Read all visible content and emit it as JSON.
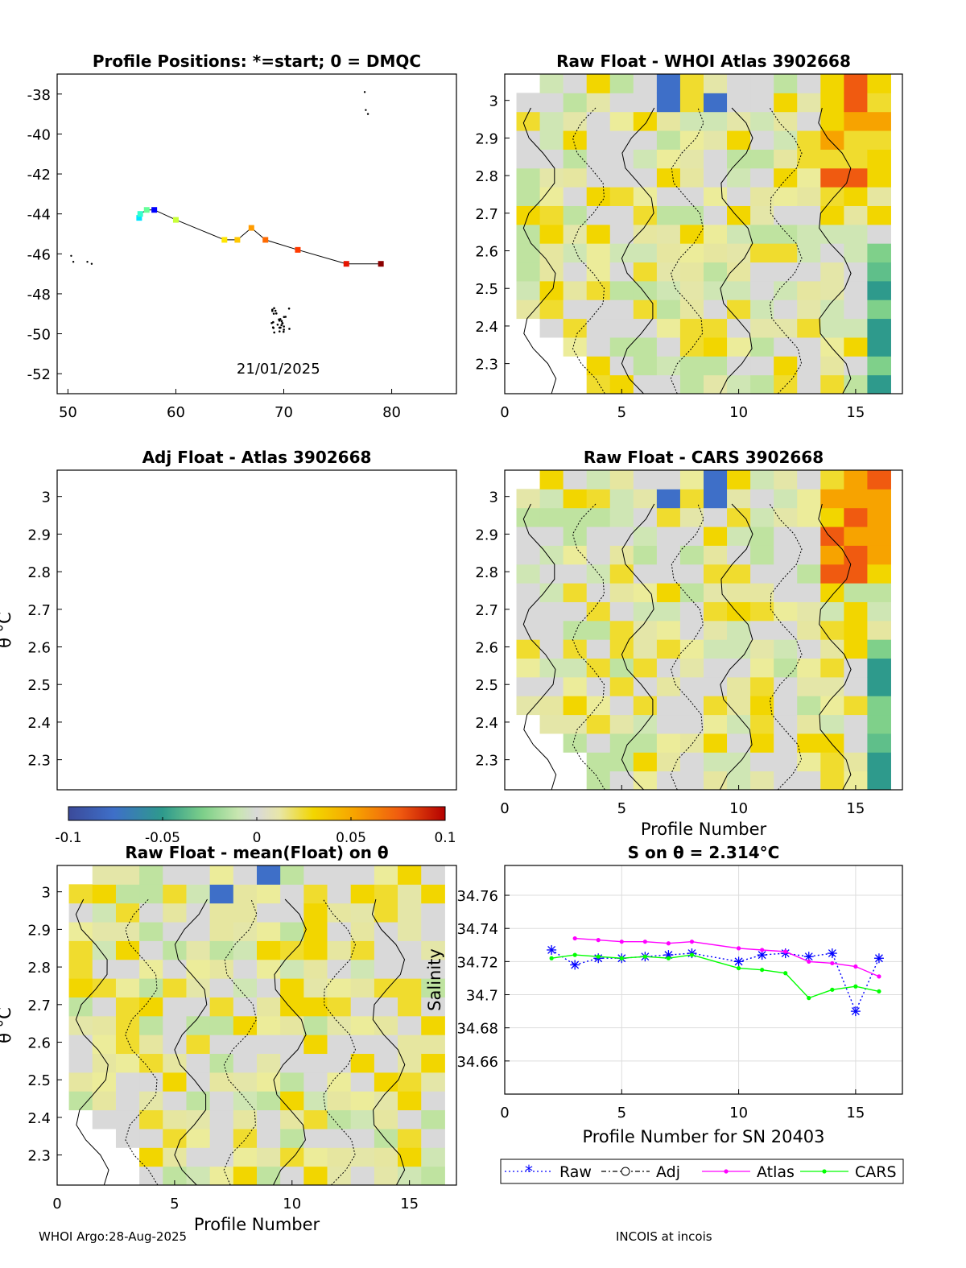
{
  "colors": {
    "float_track": "#000000",
    "raw": "#0000ff",
    "adj": "#000000",
    "atlas": "#ff00ff",
    "cars": "#00ff00",
    "grid": "#dddddd",
    "nodata": "#d9d9d9"
  },
  "chart_data": [
    {
      "type": "scatter",
      "name": "positions",
      "title": "Profile Positions: *=start; 0 = DMQC",
      "xlim": [
        49,
        86
      ],
      "ylim": [
        -53,
        -37
      ],
      "xticks": [
        50,
        60,
        70,
        80
      ],
      "yticks": [
        -38,
        -40,
        -42,
        -44,
        -46,
        -48,
        -50,
        -52
      ],
      "date_label": "21/01/2025",
      "track": [
        {
          "lon": 56.6,
          "lat": -44.2,
          "color": "#00e5ff"
        },
        {
          "lon": 56.7,
          "lat": -44.0,
          "color": "#33ffcc"
        },
        {
          "lon": 57.3,
          "lat": -43.8,
          "color": "#66ff99"
        },
        {
          "lon": 58.0,
          "lat": -43.8,
          "color": "#0000ff"
        },
        {
          "lon": 60.0,
          "lat": -44.3,
          "color": "#c8ff37"
        },
        {
          "lon": 64.5,
          "lat": -45.3,
          "color": "#ffe600"
        },
        {
          "lon": 65.7,
          "lat": -45.3,
          "color": "#ffc800"
        },
        {
          "lon": 67.0,
          "lat": -44.7,
          "color": "#ff9c00"
        },
        {
          "lon": 68.3,
          "lat": -45.3,
          "color": "#ff6a00"
        },
        {
          "lon": 71.3,
          "lat": -45.8,
          "color": "#ff3a00"
        },
        {
          "lon": 75.8,
          "lat": -46.5,
          "color": "#e61400"
        },
        {
          "lon": 79.0,
          "lat": -46.5,
          "color": "#8b0000"
        }
      ]
    },
    {
      "type": "heatmap",
      "name": "raw_whoi",
      "title": "Raw Float - WHOI Atlas  3902668",
      "xlabel": "",
      "ylabel": "",
      "xlim": [
        0,
        17
      ],
      "ylim": [
        2.22,
        3.07
      ],
      "xticks": [
        0,
        5,
        10,
        15
      ],
      "yticks": [
        3,
        2.9,
        2.8,
        2.7,
        2.6,
        2.5,
        2.4,
        2.3
      ]
    },
    {
      "type": "heatmap",
      "name": "adj_atlas",
      "title": "Adj Float - Atlas  3902668",
      "xlabel": "",
      "ylabel": "θ °C",
      "xlim": [
        0,
        17
      ],
      "ylim": [
        2.22,
        3.07
      ],
      "xticks": [],
      "yticks": [
        3,
        2.9,
        2.8,
        2.7,
        2.6,
        2.5,
        2.4,
        2.3
      ]
    },
    {
      "type": "heatmap",
      "name": "raw_cars",
      "title": "Raw Float - CARS  3902668",
      "xlabel": "Profile Number",
      "ylabel": "",
      "xlim": [
        0,
        17
      ],
      "ylim": [
        2.22,
        3.07
      ],
      "xticks": [
        0,
        5,
        10,
        15
      ],
      "yticks": [
        3,
        2.9,
        2.8,
        2.7,
        2.6,
        2.5,
        2.4,
        2.3
      ]
    },
    {
      "type": "heatmap",
      "name": "raw_mean",
      "title": "Raw Float - mean(Float) on θ",
      "xlabel": "Profile Number",
      "ylabel": "θ °C",
      "xlim": [
        0,
        17
      ],
      "ylim": [
        2.22,
        3.07
      ],
      "xticks": [
        0,
        5,
        10,
        15
      ],
      "yticks": [
        3,
        2.9,
        2.8,
        2.7,
        2.6,
        2.5,
        2.4,
        2.3
      ]
    },
    {
      "type": "line",
      "name": "salinity",
      "title": "S on θ = 2.314°C",
      "xlabel": "Profile Number for SN 20403",
      "ylabel": "Salinity",
      "xlim": [
        0,
        17
      ],
      "ylim": [
        34.64,
        34.778
      ],
      "xticks": [
        0,
        5,
        10,
        15
      ],
      "yticks": [
        34.76,
        34.74,
        34.72,
        34.7,
        34.68,
        34.66
      ],
      "series": [
        {
          "name": "Raw",
          "x": [
            2,
            3,
            4,
            5,
            6,
            7,
            8,
            10,
            11,
            12,
            13,
            14,
            15,
            16
          ],
          "y": [
            34.727,
            34.718,
            34.722,
            34.722,
            34.723,
            34.724,
            34.725,
            34.72,
            34.724,
            34.725,
            34.723,
            34.725,
            34.69,
            34.722
          ]
        },
        {
          "name": "Adj",
          "x": [],
          "y": []
        },
        {
          "name": "Atlas",
          "x": [
            3,
            4,
            5,
            6,
            7,
            8,
            10,
            11,
            12,
            13,
            14,
            15,
            16
          ],
          "y": [
            34.734,
            34.733,
            34.732,
            34.732,
            34.731,
            34.732,
            34.728,
            34.727,
            34.726,
            34.72,
            34.719,
            34.717,
            34.711
          ]
        },
        {
          "name": "CARS",
          "x": [
            2,
            3,
            4,
            5,
            6,
            7,
            8,
            10,
            11,
            12,
            13,
            14,
            15,
            16
          ],
          "y": [
            34.722,
            34.724,
            34.723,
            34.722,
            34.723,
            34.722,
            34.724,
            34.716,
            34.715,
            34.713,
            34.698,
            34.703,
            34.705,
            34.702
          ]
        }
      ]
    }
  ],
  "colorbar": {
    "ticks": [
      "-0.1",
      "-0.05",
      "0",
      "0.05",
      "0.1"
    ]
  },
  "footer": {
    "left": "WHOI Argo:28-Aug-2025",
    "right": "INCOIS at incois"
  }
}
